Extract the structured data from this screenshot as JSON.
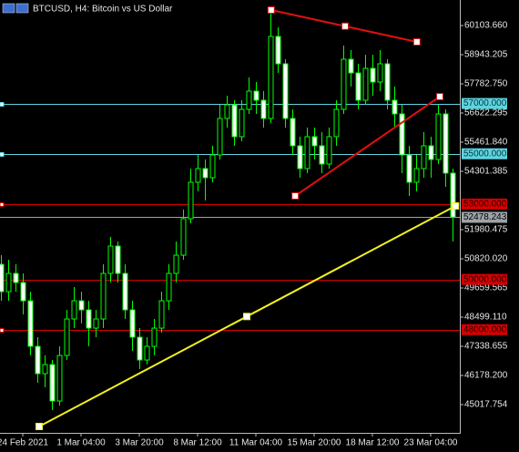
{
  "chart_data": {
    "type": "candlestick",
    "title": "BTCUSD, H4:  Bitcoin vs US Dollar",
    "categories": [
      null,
      null,
      null,
      "24 Feb 2021",
      null,
      null,
      null,
      null,
      null,
      null,
      null,
      "1 Mar 04:00",
      null,
      null,
      null,
      null,
      null,
      null,
      null,
      "3 Mar 20:00",
      null,
      null,
      null,
      null,
      null,
      null,
      null,
      "8 Mar 12:00",
      null,
      null,
      null,
      null,
      null,
      null,
      null,
      "11 Mar 04:00",
      null,
      null,
      null,
      null,
      null,
      null,
      null,
      "15 Mar 20:00",
      null,
      null,
      null,
      null,
      null,
      null,
      null,
      "18 Mar 12:00",
      null,
      null,
      null,
      null,
      null,
      null,
      null,
      "23 Mar 04:00",
      null,
      null,
      null
    ],
    "open": [
      50601,
      49513,
      50239,
      49876,
      49150,
      47337,
      46249,
      46611,
      45161,
      46974,
      48425,
      49150,
      48788,
      48062,
      48425,
      50239,
      51327,
      50239,
      48788,
      47700,
      46793,
      47337,
      48062,
      49150,
      50239,
      50964,
      52415,
      53866,
      54410,
      54047,
      54954,
      56405,
      56949,
      55679,
      56767,
      57493,
      57130,
      56405,
      59669,
      58581,
      56405,
      55317,
      54410,
      55679,
      55317,
      54591,
      55679,
      56767,
      58762,
      58218,
      57130,
      58399,
      57855,
      58581,
      57130,
      56586,
      54954,
      53866,
      54410,
      55317,
      54773,
      56586,
      54229
    ],
    "high": [
      50964,
      50783,
      50601,
      50239,
      49513,
      47700,
      46974,
      46793,
      47337,
      48788,
      49695,
      49513,
      49150,
      48788,
      50601,
      51690,
      51508,
      50601,
      49150,
      48062,
      47700,
      48425,
      49513,
      50601,
      51508,
      52778,
      54410,
      54954,
      54773,
      55317,
      56949,
      57311,
      57130,
      57130,
      58037,
      57855,
      57493,
      60575,
      60031,
      58762,
      56767,
      55679,
      56042,
      56042,
      55861,
      56042,
      57130,
      59306,
      59125,
      58581,
      58943,
      58943,
      59125,
      58762,
      57674,
      56949,
      55317,
      54954,
      55861,
      55679,
      56949,
      56767,
      54410
    ],
    "low": [
      49150,
      49150,
      49513,
      48606,
      46974,
      45886,
      45705,
      44798,
      44979,
      46793,
      48062,
      48244,
      47337,
      47700,
      48062,
      49876,
      49876,
      48425,
      47156,
      46430,
      46611,
      46974,
      47881,
      48788,
      49876,
      50783,
      52234,
      53503,
      53141,
      53866,
      54773,
      56042,
      55317,
      55498,
      56586,
      56586,
      56042,
      56223,
      58218,
      56042,
      54954,
      54047,
      54229,
      54773,
      54229,
      54410,
      55317,
      56586,
      57674,
      56767,
      56949,
      57311,
      57493,
      56767,
      56042,
      54229,
      53322,
      53503,
      54047,
      54047,
      54591,
      53685,
      51508
    ],
    "close": [
      49513,
      50239,
      49876,
      49150,
      47337,
      46249,
      46611,
      45161,
      46974,
      48425,
      49150,
      48788,
      48062,
      48425,
      50239,
      51327,
      50239,
      48788,
      47700,
      46793,
      47337,
      48062,
      49150,
      50239,
      50964,
      52415,
      53866,
      54410,
      54047,
      54954,
      56405,
      56949,
      55679,
      56767,
      57493,
      57130,
      56405,
      59669,
      58581,
      56405,
      55317,
      54410,
      55679,
      55317,
      54591,
      55679,
      56767,
      58762,
      58218,
      57130,
      58399,
      57855,
      58581,
      57130,
      56586,
      54954,
      53866,
      54410,
      55317,
      54773,
      56586,
      54229,
      52478.243
    ],
    "wick_color": "#00ff00",
    "up_color": "#000000",
    "down_color": "#ffffff",
    "ylim": [
      43893.4,
      61119.1
    ],
    "yticks": [
      {
        "value": 60103.66,
        "label": "60103.660"
      },
      {
        "value": 58943.205,
        "label": "58943.205"
      },
      {
        "value": 57782.75,
        "label": "57782.750"
      },
      {
        "value": 56622.295,
        "label": "56622.295"
      },
      {
        "value": 55461.84,
        "label": "55461.840"
      },
      {
        "value": 54301.385,
        "label": "54301.385"
      },
      {
        "value": 51980.475,
        "label": "51980.475"
      },
      {
        "value": 50820.02,
        "label": "50820.020"
      },
      {
        "value": 49659.565,
        "label": "49659.565"
      },
      {
        "value": 48499.11,
        "label": "48499.110"
      },
      {
        "value": 47338.655,
        "label": "47338.655"
      },
      {
        "value": 46178.2,
        "label": "46178.200"
      },
      {
        "value": 45017.754,
        "label": "45017.754"
      }
    ],
    "levels": [
      {
        "value": 57000,
        "label": "57000.000",
        "color": "#5fd3e0"
      },
      {
        "value": 55000,
        "label": "55000.000",
        "color": "#5fd3e0"
      },
      {
        "value": 53000,
        "label": "53000.000",
        "color": "#d50000"
      },
      {
        "value": 50000,
        "label": "50000.000",
        "color": "#d50000"
      },
      {
        "value": 48000,
        "label": "48000.000",
        "color": "#d50000"
      }
    ],
    "current_price": {
      "value": 52478.243,
      "label": "52478.243",
      "color": "#9ea3a8"
    },
    "trendlines": [
      {
        "color": "#e01010",
        "x": [
          37.1,
          47.25,
          57.1
        ],
        "values": [
          60720,
          60076,
          59451
        ]
      },
      {
        "color": "#e01010",
        "x": [
          40.4,
          60.25
        ],
        "values": [
          53322,
          57275
        ]
      },
      {
        "color": "#f0f020",
        "x": [
          5.25,
          33.75,
          62.4
        ],
        "values": [
          44147,
          48524,
          52923
        ]
      }
    ]
  }
}
